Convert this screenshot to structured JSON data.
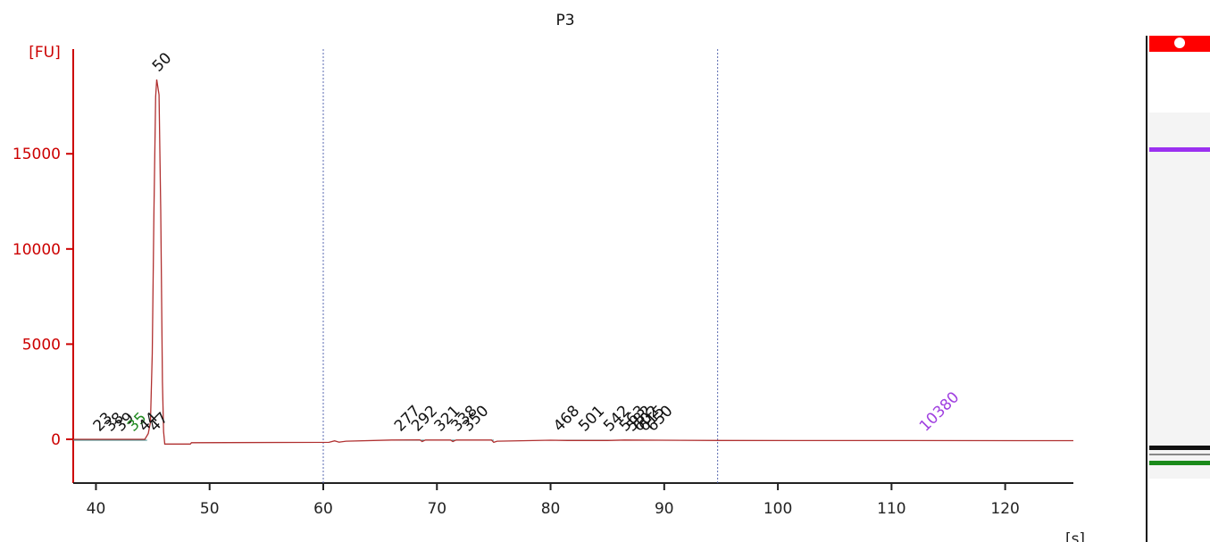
{
  "chart_data": {
    "type": "line",
    "title": "P3",
    "ylabel": "[FU]",
    "xlabel": "[s]",
    "xlim": [
      38,
      126
    ],
    "ylim": [
      -2300,
      20500
    ],
    "x_ticks": [
      40,
      50,
      60,
      70,
      80,
      90,
      100,
      110,
      120
    ],
    "y_ticks": [
      0,
      5000,
      10000,
      15000
    ],
    "dotted_lines_x": [
      60,
      94.7
    ],
    "grid": false,
    "legend": "none",
    "series": [
      {
        "color": "#b03030",
        "points": [
          [
            38,
            0
          ],
          [
            44.3,
            0
          ],
          [
            44.6,
            300
          ],
          [
            44.8,
            900
          ],
          [
            44.95,
            4500
          ],
          [
            45.1,
            12000
          ],
          [
            45.25,
            18000
          ],
          [
            45.35,
            18900
          ],
          [
            45.45,
            18500
          ],
          [
            45.55,
            18100
          ],
          [
            45.7,
            12000
          ],
          [
            45.85,
            3000
          ],
          [
            45.95,
            400
          ],
          [
            46.05,
            -250
          ],
          [
            48.3,
            -250
          ],
          [
            48.4,
            -180
          ],
          [
            60.5,
            -160
          ],
          [
            61,
            -80
          ],
          [
            61.4,
            -150
          ],
          [
            62,
            -100
          ],
          [
            66,
            -40
          ],
          [
            68.5,
            -30
          ],
          [
            68.7,
            -120
          ],
          [
            69,
            -40
          ],
          [
            71.2,
            -40
          ],
          [
            71.4,
            -120
          ],
          [
            71.7,
            -40
          ],
          [
            74.8,
            -40
          ],
          [
            75,
            -160
          ],
          [
            75.3,
            -100
          ],
          [
            80,
            -50
          ],
          [
            81.5,
            -60
          ],
          [
            85,
            -60
          ],
          [
            86.5,
            -40
          ],
          [
            89.5,
            -50
          ],
          [
            95,
            -60
          ],
          [
            126,
            -70
          ]
        ]
      }
    ],
    "peak_labels": [
      {
        "label": "23",
        "x": 40.3,
        "y": 0,
        "color": "#111111"
      },
      {
        "label": "38",
        "x": 41.3,
        "y": 0,
        "color": "#111111"
      },
      {
        "label": "39",
        "x": 42.2,
        "y": 0,
        "color": "#111111"
      },
      {
        "label": "35",
        "x": 43.3,
        "y": 0,
        "color": "#228b22"
      },
      {
        "label": "44",
        "x": 44.3,
        "y": 0,
        "color": "#111111"
      },
      {
        "label": "47",
        "x": 45.2,
        "y": 0,
        "color": "#111111"
      },
      {
        "label": "50",
        "x": 45.5,
        "y": 18900,
        "color": "#111111"
      },
      {
        "label": "277",
        "x": 66.8,
        "y": 0,
        "color": "#111111"
      },
      {
        "label": "292",
        "x": 68.3,
        "y": 0,
        "color": "#111111"
      },
      {
        "label": "321",
        "x": 70.3,
        "y": 0,
        "color": "#111111"
      },
      {
        "label": "338",
        "x": 71.8,
        "y": 0,
        "color": "#111111"
      },
      {
        "label": "350",
        "x": 72.8,
        "y": 0,
        "color": "#111111"
      },
      {
        "label": "468",
        "x": 80.8,
        "y": 0,
        "color": "#111111"
      },
      {
        "label": "501",
        "x": 83,
        "y": 0,
        "color": "#111111"
      },
      {
        "label": "542",
        "x": 85.2,
        "y": 0,
        "color": "#111111"
      },
      {
        "label": "563",
        "x": 86.6,
        "y": 0,
        "color": "#111111"
      },
      {
        "label": "582",
        "x": 87.2,
        "y": 0,
        "color": "#111111"
      },
      {
        "label": "602",
        "x": 87.8,
        "y": 0,
        "color": "#111111"
      },
      {
        "label": "615",
        "x": 88.3,
        "y": 0,
        "color": "#111111"
      },
      {
        "label": "650",
        "x": 89,
        "y": 0,
        "color": "#111111"
      },
      {
        "label": "10380",
        "x": 113,
        "y": 0,
        "color": "#a040e0"
      }
    ]
  },
  "gel": {
    "bands": [
      {
        "position": 0.22,
        "color": "#9b30f0"
      },
      {
        "position": 0.81,
        "color": "#111111"
      },
      {
        "position": 0.825,
        "color": "#888888"
      },
      {
        "position": 0.84,
        "color": "#1a8a1a"
      }
    ]
  }
}
